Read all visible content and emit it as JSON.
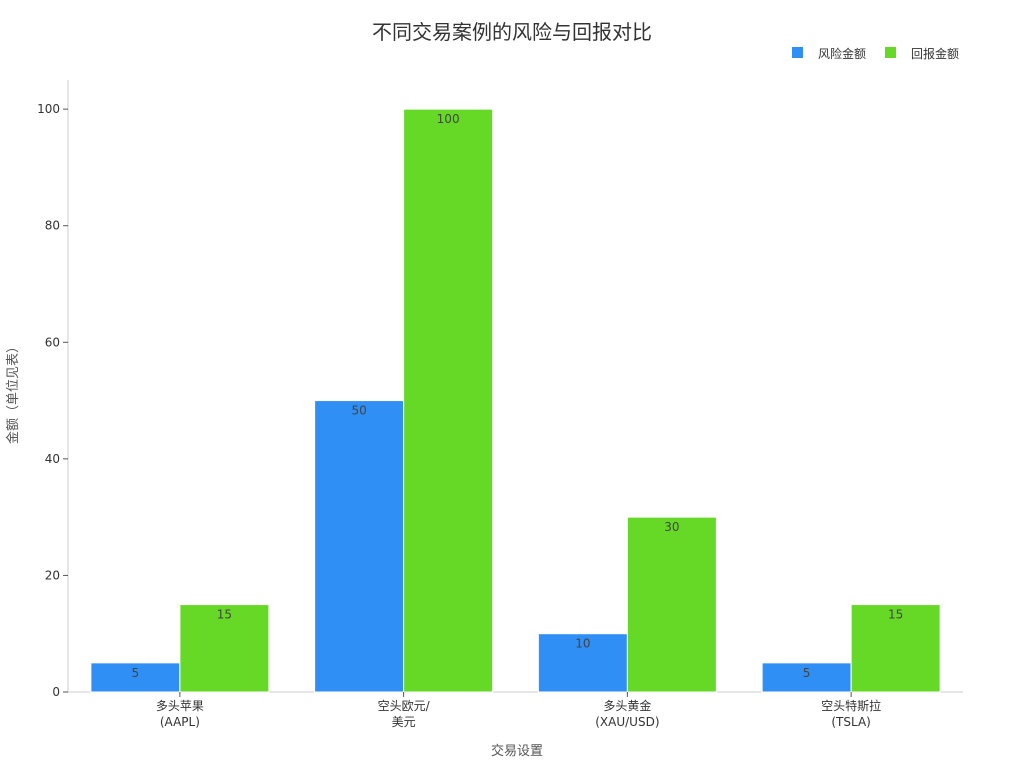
{
  "chart_data": {
    "type": "bar",
    "title": "不同交易案例的风险与回报对比",
    "xlabel": "交易设置",
    "ylabel": "金额（单位见表）",
    "categories": [
      [
        "多头苹果",
        "(AAPL)"
      ],
      [
        "空头欧元/",
        "美元"
      ],
      [
        "多头黄金",
        "(XAU/USD)"
      ],
      [
        "空头特斯拉",
        "(TSLA)"
      ]
    ],
    "series": [
      {
        "name": "风险金额",
        "color": "#2f8ff5",
        "values": [
          5,
          50,
          10,
          5
        ]
      },
      {
        "name": "回报金额",
        "color": "#66d926",
        "values": [
          15,
          100,
          30,
          15
        ]
      }
    ],
    "ylim": [
      0,
      105
    ],
    "yticks": [
      0,
      20,
      40,
      60,
      80,
      100
    ],
    "grid": false,
    "legend_position": "top-right"
  }
}
